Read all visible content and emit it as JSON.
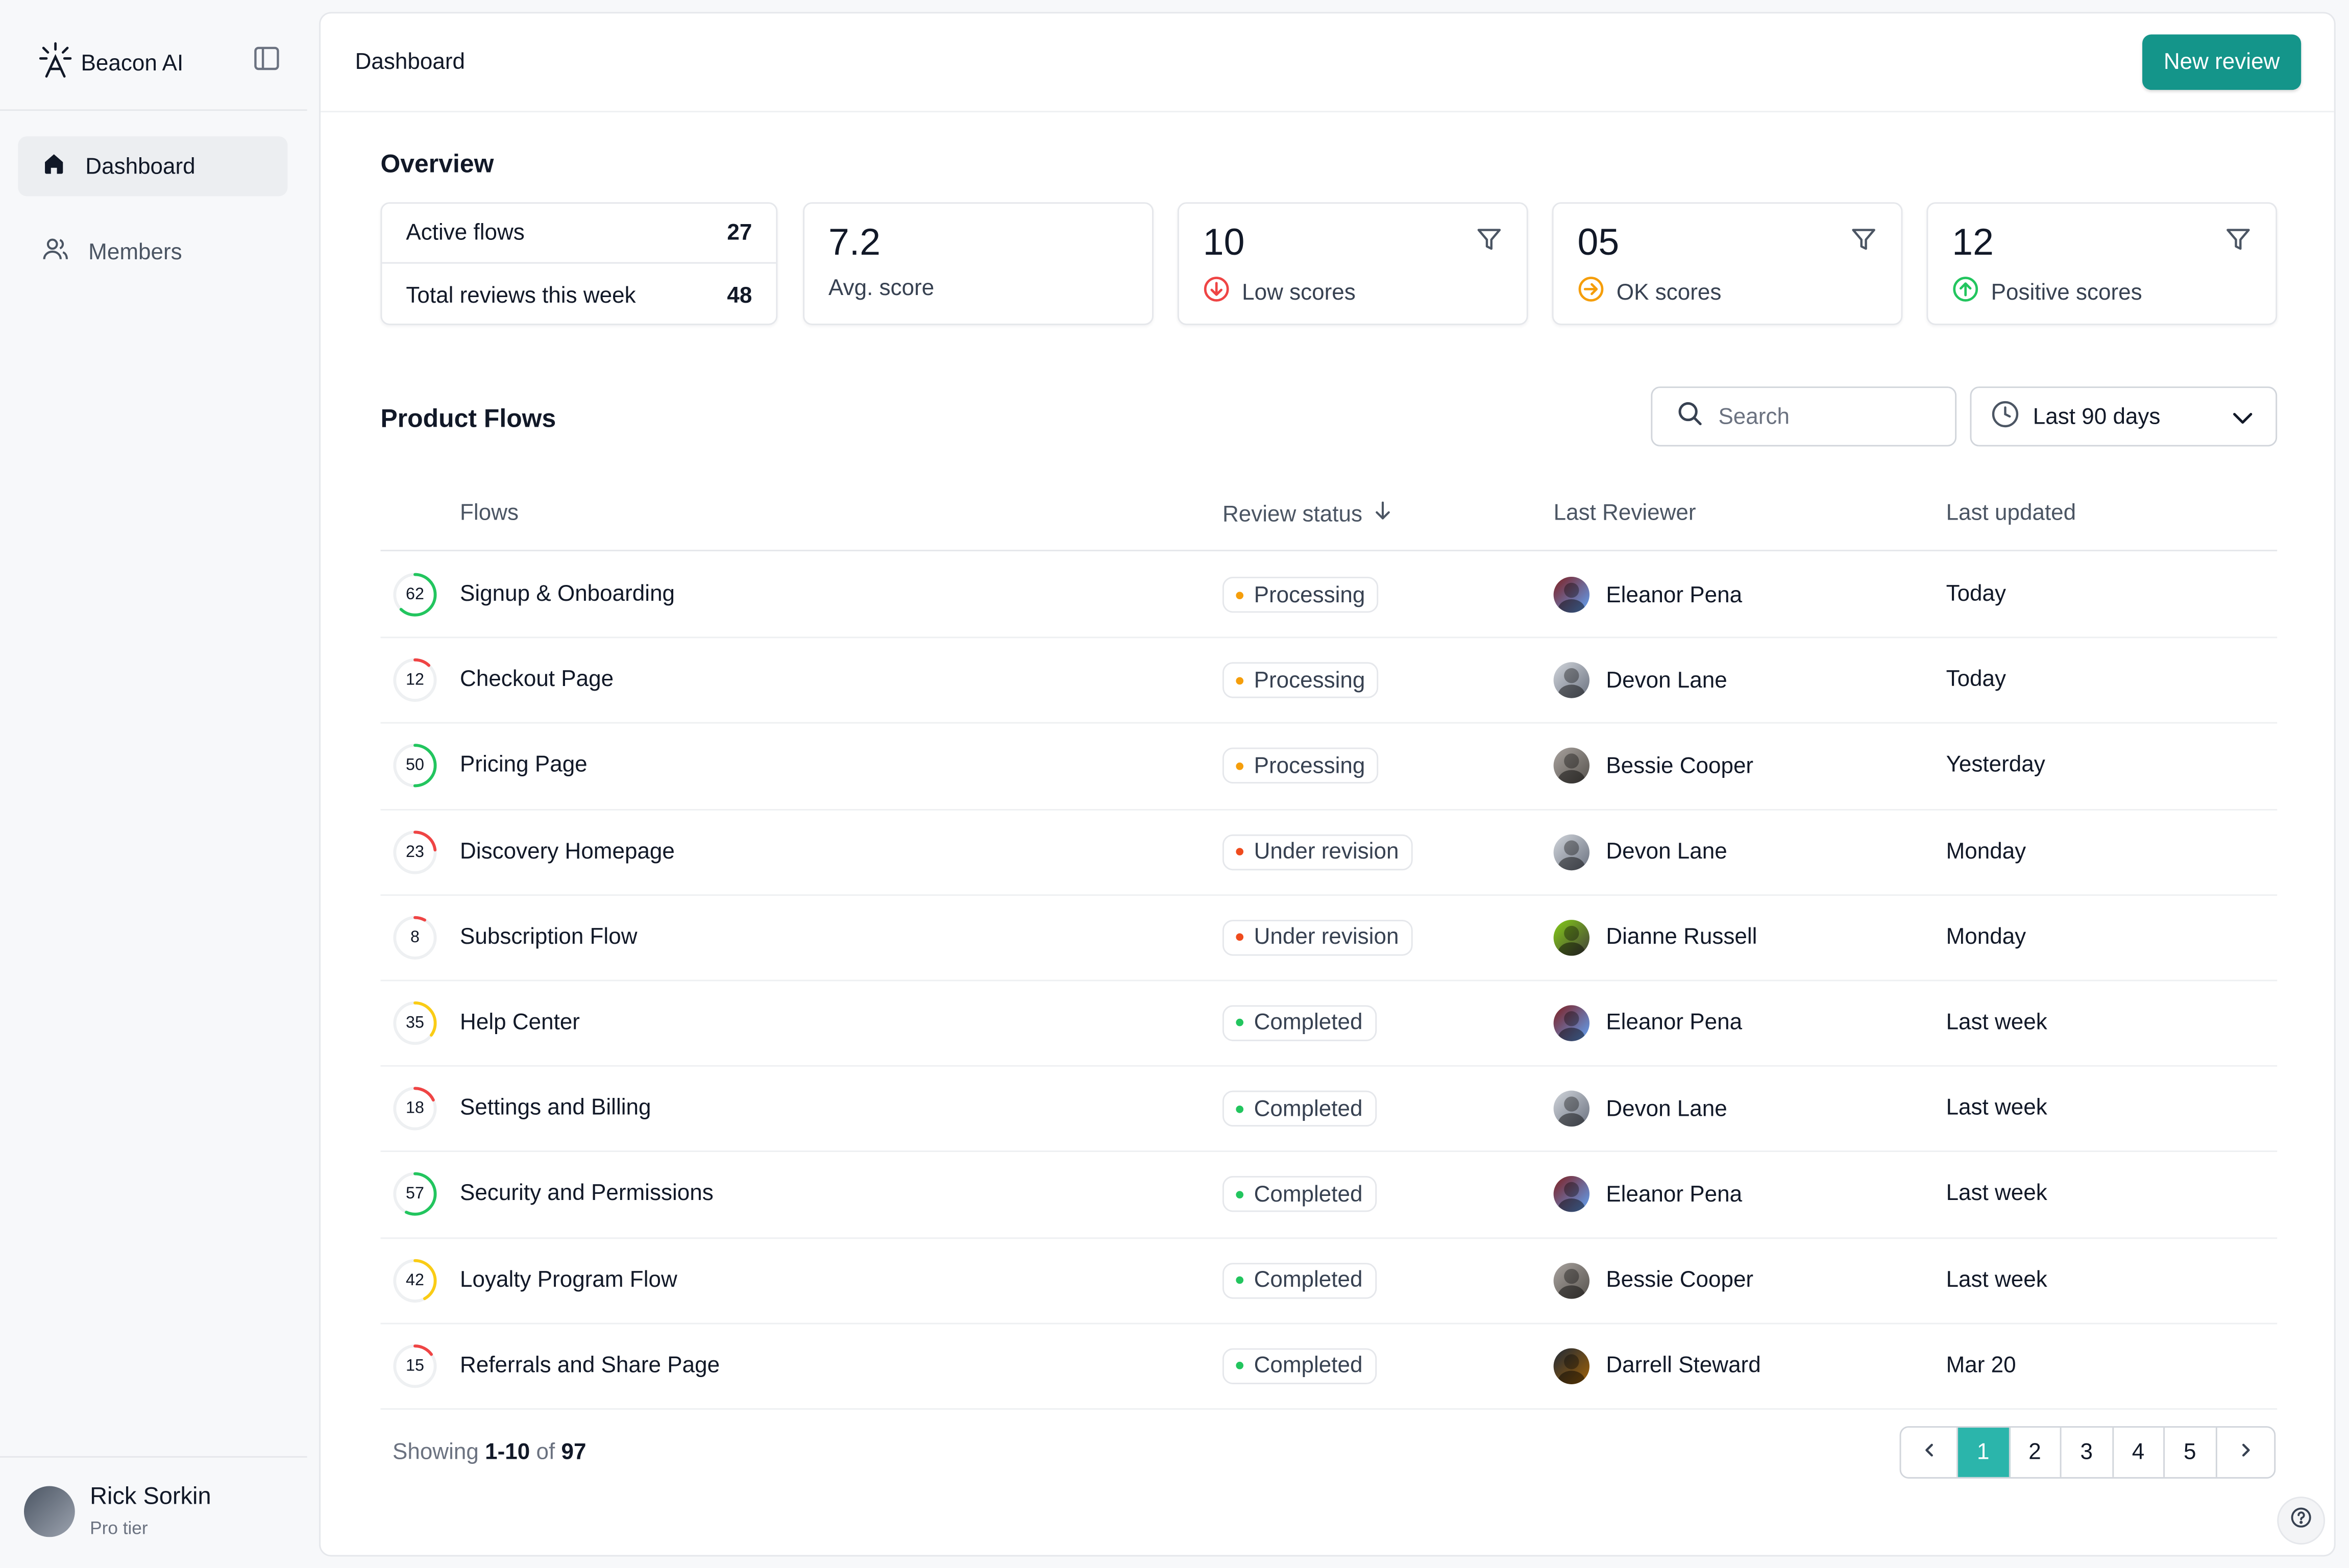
{
  "app": {
    "name": "Beacon AI"
  },
  "sidebar": {
    "items": [
      {
        "label": "Dashboard",
        "icon": "home-icon",
        "active": true
      },
      {
        "label": "Members",
        "icon": "users-icon",
        "active": false
      }
    ],
    "user": {
      "name": "Rick Sorkin",
      "tier": "Pro tier"
    }
  },
  "header": {
    "breadcrumb": "Dashboard",
    "new_review_label": "New review"
  },
  "overview": {
    "title": "Overview",
    "active_flows_label": "Active flows",
    "active_flows_value": "27",
    "total_reviews_label": "Total reviews this week",
    "total_reviews_value": "48",
    "avg_score_value": "7.2",
    "avg_score_label": "Avg. score",
    "low_value": "10",
    "low_label": "Low scores",
    "ok_value": "05",
    "ok_label": "OK scores",
    "positive_value": "12",
    "positive_label": "Positive scores"
  },
  "flows_section": {
    "title": "Product Flows",
    "search_placeholder": "Search",
    "range_label": "Last 90 days",
    "columns": {
      "flows": "Flows",
      "status": "Review status",
      "reviewer": "Last Reviewer",
      "updated": "Last updated"
    }
  },
  "rows": [
    {
      "score": 62,
      "name": "Signup & Onboarding",
      "status": "Processing",
      "reviewer": "Eleanor Pena",
      "updated": "Today"
    },
    {
      "score": 12,
      "name": "Checkout Page",
      "status": "Processing",
      "reviewer": "Devon Lane",
      "updated": "Today"
    },
    {
      "score": 50,
      "name": "Pricing Page",
      "status": "Processing",
      "reviewer": "Bessie Cooper",
      "updated": "Yesterday"
    },
    {
      "score": 23,
      "name": "Discovery Homepage",
      "status": "Under revision",
      "reviewer": "Devon Lane",
      "updated": "Monday"
    },
    {
      "score": 8,
      "name": "Subscription Flow",
      "status": "Under revision",
      "reviewer": "Dianne Russell",
      "updated": "Monday"
    },
    {
      "score": 35,
      "name": "Help Center",
      "status": "Completed",
      "reviewer": "Eleanor Pena",
      "updated": "Last week"
    },
    {
      "score": 18,
      "name": "Settings and Billing",
      "status": "Completed",
      "reviewer": "Devon Lane",
      "updated": "Last week"
    },
    {
      "score": 57,
      "name": "Security and Permissions",
      "status": "Completed",
      "reviewer": "Eleanor Pena",
      "updated": "Last week"
    },
    {
      "score": 42,
      "name": "Loyalty Program Flow",
      "status": "Completed",
      "reviewer": "Bessie Cooper",
      "updated": "Last week"
    },
    {
      "score": 15,
      "name": "Referrals and Share Page",
      "status": "Completed",
      "reviewer": "Darrell Steward",
      "updated": "Mar 20"
    }
  ],
  "pagination": {
    "showing_prefix": "Showing",
    "showing_range": "1-10",
    "showing_of": "of",
    "showing_total": "97",
    "pages": [
      "1",
      "2",
      "3",
      "4",
      "5"
    ],
    "current": "1"
  },
  "colors": {
    "accent": "#14958a",
    "processing": "#f59e0b",
    "under_revision": "#ef4b1d",
    "completed": "#22c55e",
    "ring_high": "#22c55e",
    "ring_mid": "#facc15",
    "ring_low": "#ef4444"
  }
}
